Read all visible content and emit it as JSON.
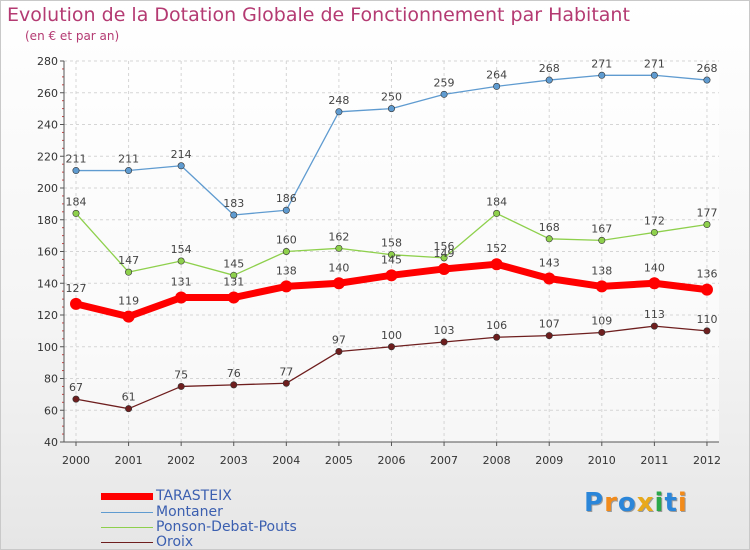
{
  "title": "Evolution de la Dotation Globale de Fonctionnement par Habitant",
  "subtitle": "(en € et par an)",
  "logo": {
    "text": "Proxiti",
    "letters": [
      "P",
      "r",
      "o",
      "x",
      "i",
      "t",
      "i"
    ],
    "colors": [
      "#2b86d9",
      "#f28b1b",
      "#2b86d9",
      "#e8a91b",
      "#2aa84a",
      "#2b86d9",
      "#f28b1b"
    ]
  },
  "chart_data": {
    "type": "line",
    "title": "Evolution de la Dotation Globale de Fonctionnement par Habitant",
    "subtitle": "(en € et par an)",
    "xlabel": "",
    "ylabel": "",
    "ylim": [
      40,
      280
    ],
    "yticks": [
      40,
      60,
      80,
      100,
      120,
      140,
      160,
      180,
      200,
      220,
      240,
      260,
      280
    ],
    "grid": true,
    "legend_position": "bottom-left",
    "categories": [
      "2000",
      "2001",
      "2002",
      "2003",
      "2004",
      "2005",
      "2006",
      "2007",
      "2008",
      "2009",
      "2010",
      "2011",
      "2012"
    ],
    "series": [
      {
        "name": "Oroix",
        "color": "#6e1e1e",
        "values": [
          67,
          61,
          75,
          76,
          77,
          97,
          100,
          103,
          106,
          107,
          109,
          113,
          110
        ]
      },
      {
        "name": "Ponson-Debat-Pouts",
        "color": "#8ed04c",
        "values": [
          184,
          147,
          154,
          145,
          160,
          162,
          158,
          156,
          184,
          168,
          167,
          172,
          177
        ]
      },
      {
        "name": "Montaner",
        "color": "#5f9bd0",
        "values": [
          211,
          211,
          214,
          183,
          186,
          248,
          250,
          259,
          264,
          268,
          271,
          271,
          268
        ]
      },
      {
        "name": "TARASTEIX",
        "color": "#ff0000",
        "values": [
          127,
          119,
          131,
          131,
          138,
          140,
          145,
          149,
          152,
          143,
          138,
          140,
          136
        ]
      }
    ],
    "legend": [
      "TARASTEIX",
      "Montaner",
      "Ponson-Debat-Pouts",
      "Oroix"
    ]
  }
}
